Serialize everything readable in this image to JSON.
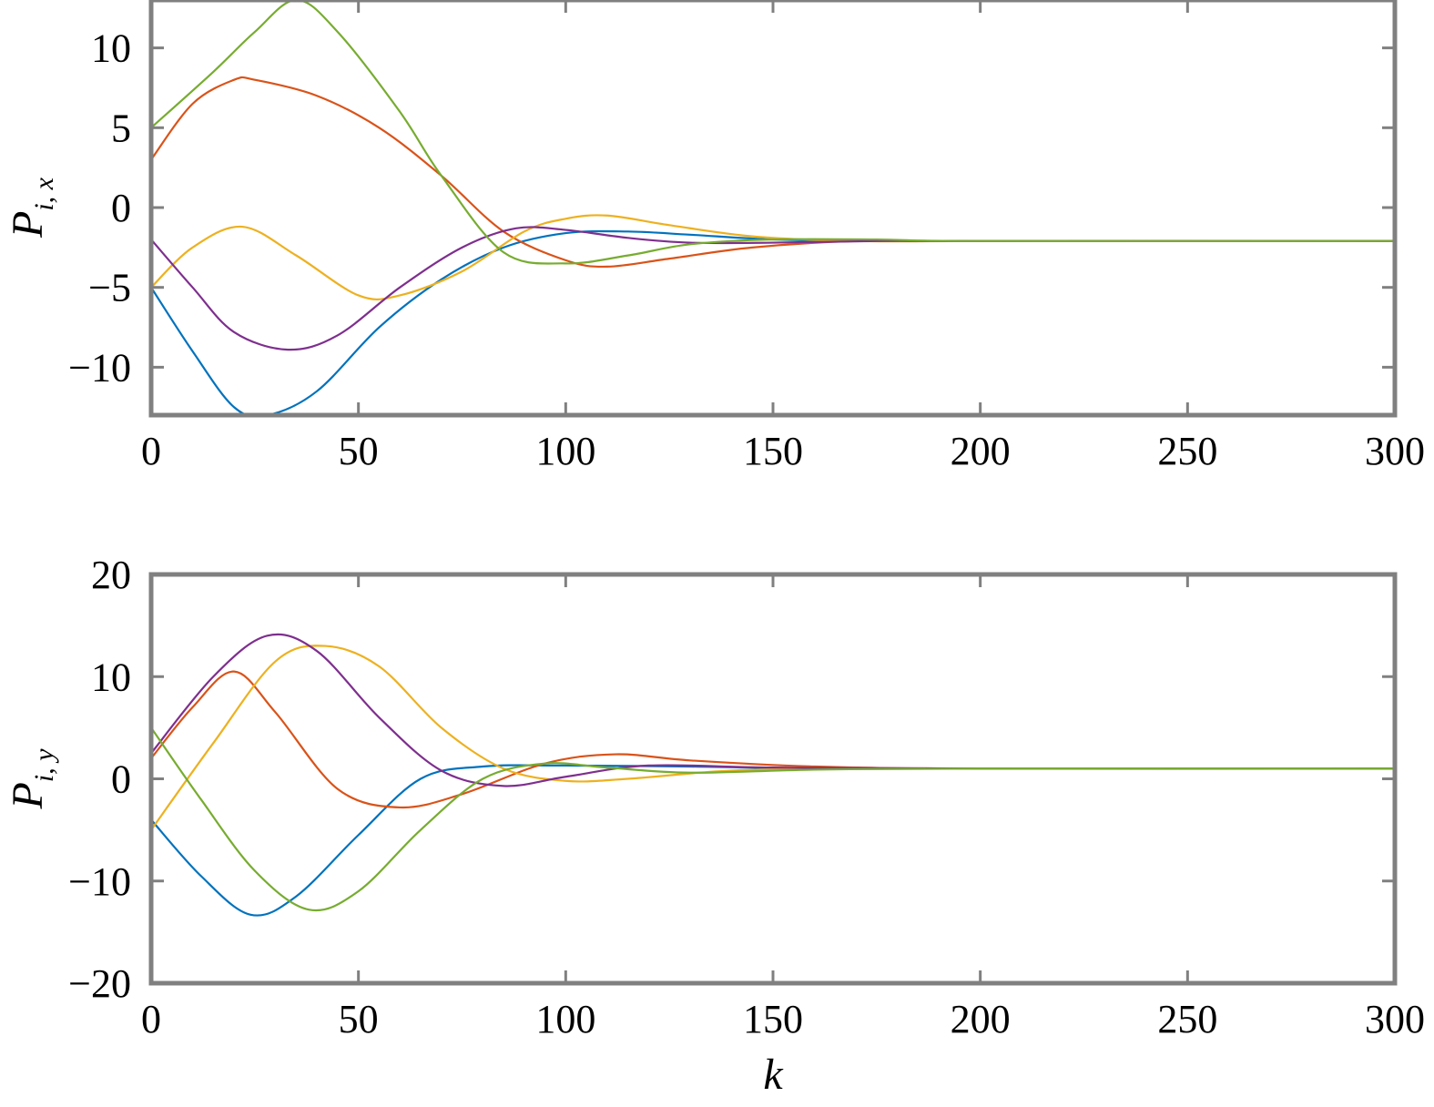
{
  "chart_data": [
    {
      "type": "line",
      "ylabel": "P",
      "ylabel_sub": "i, x",
      "xlabel": "",
      "xlim": [
        0,
        300
      ],
      "ylim": [
        -13,
        13
      ],
      "xticks": [
        0,
        50,
        100,
        150,
        200,
        250,
        300
      ],
      "yticks": [
        -10,
        -5,
        0,
        5,
        10
      ],
      "xtick_labels": [
        "0",
        "50",
        "100",
        "150",
        "200",
        "250",
        "300"
      ],
      "ytick_labels": [
        "−10",
        "−5",
        "0",
        "5",
        "10"
      ],
      "grid": false,
      "series": [
        {
          "color": "#0072BD",
          "x": [
            0,
            10,
            20,
            28,
            40,
            55,
            70,
            85,
            100,
            115,
            130,
            150,
            175,
            200,
            300
          ],
          "y": [
            -5,
            -9,
            -12.5,
            -13,
            -11.5,
            -7.5,
            -4.5,
            -2.5,
            -1.6,
            -1.5,
            -1.7,
            -2,
            -2.1,
            -2.1,
            -2.1
          ]
        },
        {
          "color": "#D95319",
          "x": [
            0,
            10,
            20,
            25,
            40,
            55,
            70,
            85,
            100,
            110,
            125,
            145,
            170,
            200,
            300
          ],
          "y": [
            3,
            6.5,
            8,
            8,
            7,
            5,
            2,
            -1.5,
            -3.3,
            -3.7,
            -3.2,
            -2.5,
            -2.1,
            -2.1,
            -2.1
          ]
        },
        {
          "color": "#EDB120",
          "x": [
            0,
            10,
            22,
            35,
            50,
            60,
            75,
            90,
            100,
            110,
            125,
            145,
            170,
            200,
            300
          ],
          "y": [
            -5,
            -2.5,
            -1.2,
            -3,
            -5.5,
            -5.5,
            -4,
            -1.5,
            -0.7,
            -0.5,
            -1.1,
            -1.8,
            -2.1,
            -2.1,
            -2.1
          ]
        },
        {
          "color": "#7E2F8E",
          "x": [
            0,
            10,
            20,
            33,
            45,
            60,
            75,
            88,
            100,
            115,
            130,
            150,
            175,
            200,
            300
          ],
          "y": [
            -2,
            -5,
            -7.8,
            -8.9,
            -8,
            -5,
            -2.5,
            -1.3,
            -1.4,
            -1.9,
            -2.2,
            -2.2,
            -2.1,
            -2.1,
            -2.1
          ]
        },
        {
          "color": "#77AC30",
          "x": [
            0,
            15,
            25,
            35,
            45,
            60,
            70,
            85,
            100,
            115,
            130,
            150,
            175,
            200,
            300
          ],
          "y": [
            5,
            8.5,
            11,
            13,
            11,
            6,
            2,
            -2.8,
            -3.5,
            -3,
            -2.3,
            -2,
            -2,
            -2.1,
            -2.1
          ]
        }
      ]
    },
    {
      "type": "line",
      "ylabel": "P",
      "ylabel_sub": "i, y",
      "xlabel": "k",
      "xlim": [
        0,
        300
      ],
      "ylim": [
        -20,
        20
      ],
      "xticks": [
        0,
        50,
        100,
        150,
        200,
        250,
        300
      ],
      "yticks": [
        -20,
        -10,
        0,
        10,
        20
      ],
      "xtick_labels": [
        "0",
        "50",
        "100",
        "150",
        "200",
        "250",
        "300"
      ],
      "ytick_labels": [
        "−20",
        "−10",
        "0",
        "10",
        "20"
      ],
      "grid": false,
      "series": [
        {
          "color": "#0072BD",
          "x": [
            0,
            12,
            24,
            35,
            50,
            65,
            80,
            100,
            130,
            160,
            200,
            300
          ],
          "y": [
            -4,
            -9.5,
            -13.3,
            -11.5,
            -5.5,
            0,
            1.2,
            1.3,
            1.2,
            1,
            1,
            1
          ]
        },
        {
          "color": "#D95319",
          "x": [
            0,
            10,
            20,
            30,
            45,
            60,
            75,
            95,
            112,
            130,
            160,
            200,
            300
          ],
          "y": [
            2,
            7,
            10.5,
            6.5,
            -1,
            -2.8,
            -1.5,
            1.5,
            2.4,
            1.8,
            1.2,
            1,
            1
          ]
        },
        {
          "color": "#EDB120",
          "x": [
            0,
            15,
            30,
            42,
            55,
            70,
            85,
            100,
            115,
            140,
            170,
            200,
            300
          ],
          "y": [
            -5,
            3.5,
            11.5,
            13,
            11,
            5,
            1,
            -0.2,
            0,
            0.8,
            1,
            1,
            1
          ]
        },
        {
          "color": "#7E2F8E",
          "x": [
            0,
            15,
            28,
            40,
            55,
            70,
            85,
            100,
            120,
            150,
            200,
            300
          ],
          "y": [
            2.5,
            10,
            14,
            12.5,
            6,
            0.8,
            -0.7,
            0.2,
            1.3,
            1.1,
            1,
            1
          ]
        },
        {
          "color": "#77AC30",
          "x": [
            0,
            12,
            25,
            38,
            50,
            65,
            80,
            95,
            110,
            130,
            160,
            200,
            300
          ],
          "y": [
            5,
            -2,
            -9,
            -12.8,
            -11,
            -5,
            0,
            1.5,
            1.1,
            0.6,
            0.9,
            1,
            1
          ]
        }
      ]
    }
  ]
}
